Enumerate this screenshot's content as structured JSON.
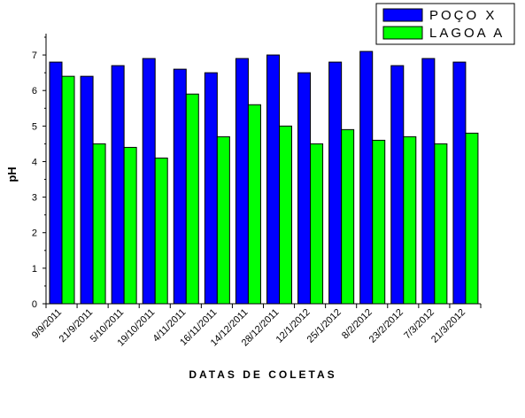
{
  "chart_data": {
    "type": "bar",
    "title": "",
    "xlabel": "DATAS DE COLETAS",
    "ylabel": "pH",
    "ylim": [
      0,
      7.6
    ],
    "yticks": [
      0,
      1,
      2,
      3,
      4,
      5,
      6,
      7
    ],
    "categories": [
      "9/9/2011",
      "21/9/2011",
      "5/10/2011",
      "19/10/2011",
      "4/11/2011",
      "16/11/2011",
      "14/12/2011",
      "28/12/2011",
      "12/1/2012",
      "25/1/2012",
      "8/2/2012",
      "23/2/2012",
      "7/3/2012",
      "21/3/2012"
    ],
    "series": [
      {
        "name": "POÇO X",
        "color": "#0000ff",
        "values": [
          6.8,
          6.4,
          6.7,
          6.9,
          6.6,
          6.5,
          6.9,
          7.0,
          6.5,
          6.8,
          7.1,
          6.7,
          6.9,
          6.8
        ]
      },
      {
        "name": "LAGOA A",
        "color": "#00ff00",
        "values": [
          6.4,
          4.5,
          4.4,
          4.1,
          5.9,
          4.7,
          5.6,
          5.0,
          4.5,
          4.9,
          4.6,
          4.7,
          4.5,
          4.8
        ]
      }
    ],
    "grid": false,
    "legend_position": "top-right"
  }
}
